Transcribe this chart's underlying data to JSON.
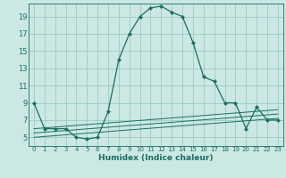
{
  "xlabel": "Humidex (Indice chaleur)",
  "bg_color": "#cce8e4",
  "grid_color": "#99ccc4",
  "line_color": "#1a6e62",
  "xlim": [
    -0.5,
    23.5
  ],
  "ylim": [
    4,
    20.5
  ],
  "yticks": [
    5,
    7,
    9,
    11,
    13,
    15,
    17,
    19
  ],
  "xticks": [
    0,
    1,
    2,
    3,
    4,
    5,
    6,
    7,
    8,
    9,
    10,
    11,
    12,
    13,
    14,
    15,
    16,
    17,
    18,
    19,
    20,
    21,
    22,
    23
  ],
  "main_x": [
    0,
    1,
    2,
    3,
    4,
    5,
    6,
    7,
    8,
    9,
    10,
    11,
    12,
    13,
    14,
    15,
    16,
    17,
    18,
    19,
    20,
    21,
    22,
    23
  ],
  "main_y": [
    9,
    6,
    6,
    6,
    5,
    4.8,
    5,
    8,
    14,
    17,
    19,
    20,
    20.2,
    19.5,
    19,
    16,
    12,
    11.5,
    9,
    9,
    6,
    8.5,
    7,
    7
  ],
  "flat_lines": [
    {
      "x": [
        0,
        23
      ],
      "y": [
        6.0,
        8.2
      ]
    },
    {
      "x": [
        0,
        23
      ],
      "y": [
        5.5,
        7.7
      ]
    },
    {
      "x": [
        0,
        23
      ],
      "y": [
        5.0,
        7.2
      ]
    }
  ]
}
